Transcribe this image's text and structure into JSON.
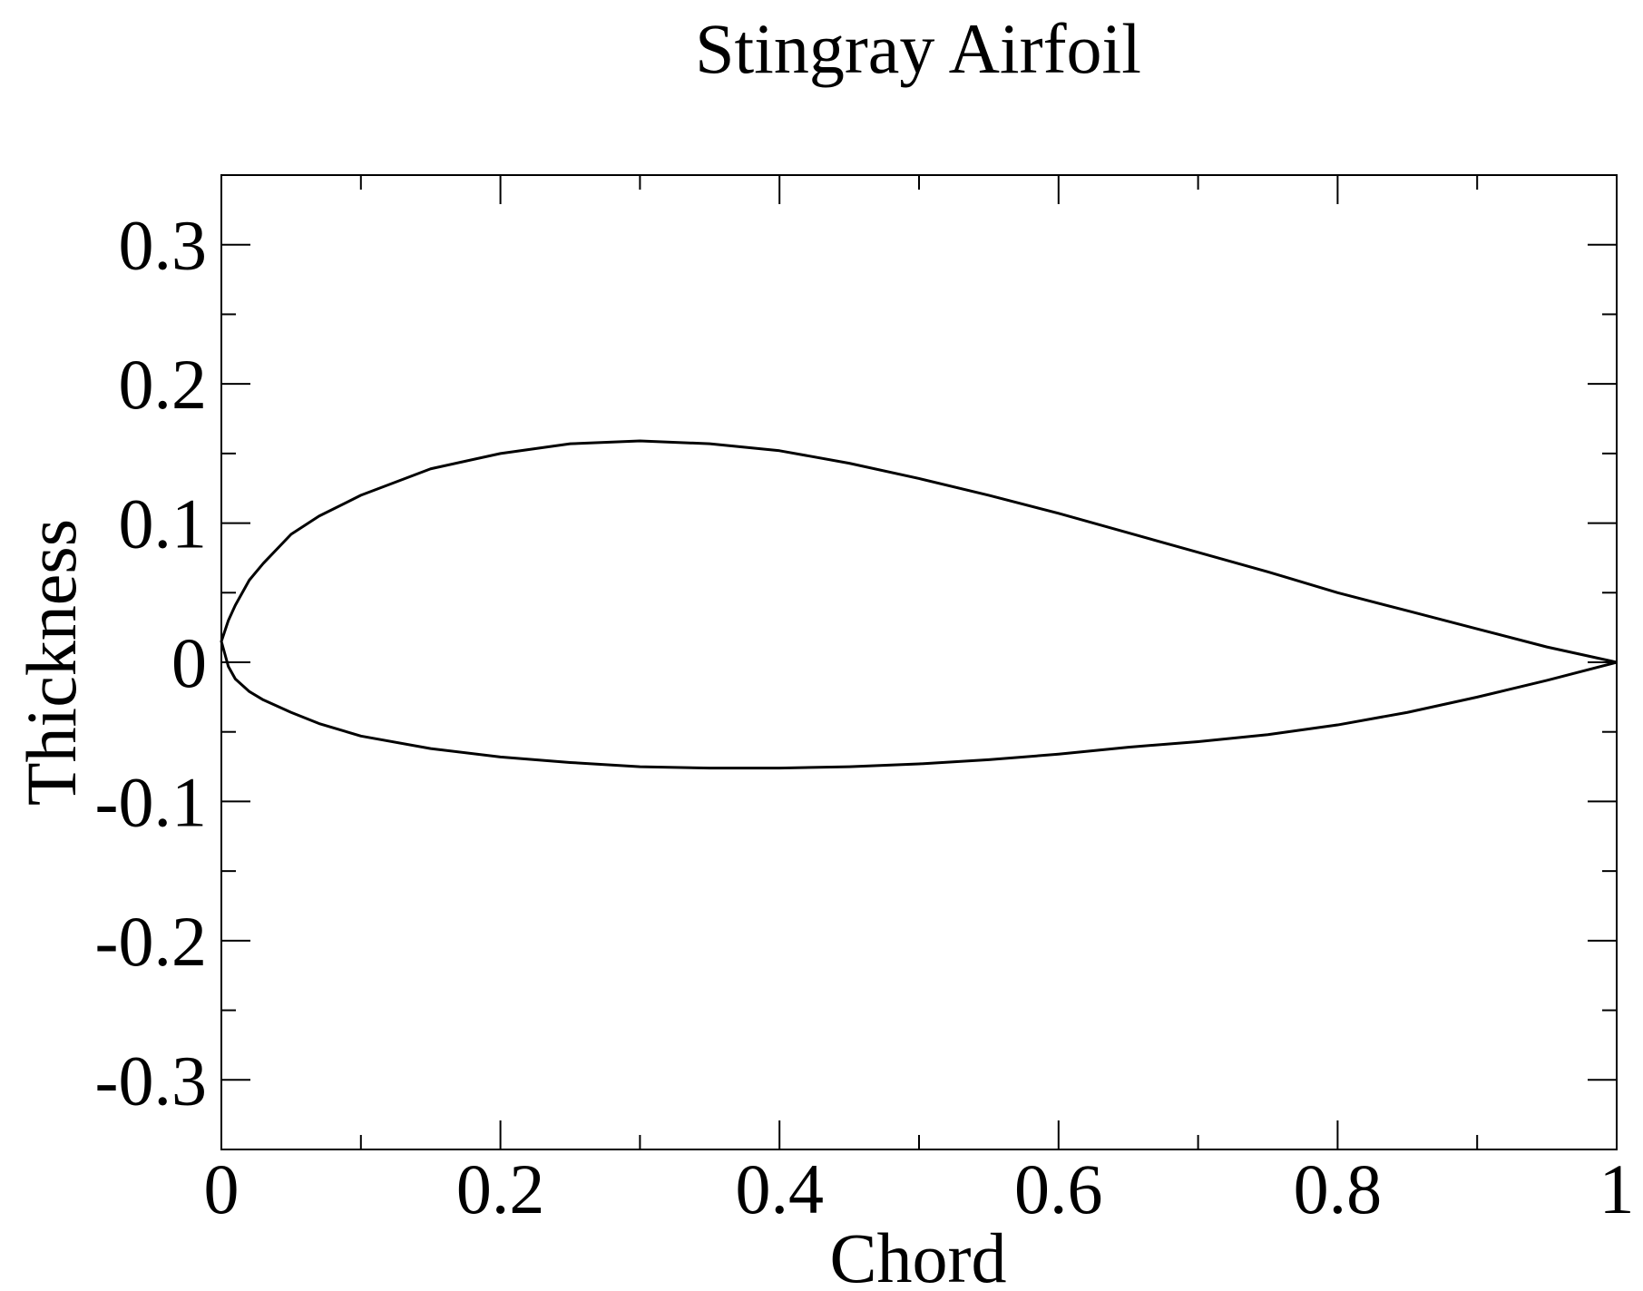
{
  "chart_data": {
    "type": "line",
    "title": "Stingray Airfoil",
    "xlabel": "Chord",
    "ylabel": "Thickness",
    "xlim": [
      0,
      1
    ],
    "ylim": [
      -0.35,
      0.35
    ],
    "x_ticks": [
      {
        "value": 0,
        "label": "0"
      },
      {
        "value": 0.2,
        "label": "0.2"
      },
      {
        "value": 0.4,
        "label": "0.4"
      },
      {
        "value": 0.6,
        "label": "0.6"
      },
      {
        "value": 0.8,
        "label": "0.8"
      },
      {
        "value": 1,
        "label": "1"
      }
    ],
    "x_minor_ticks": [
      0.1,
      0.3,
      0.5,
      0.7,
      0.9
    ],
    "y_ticks": [
      {
        "value": 0.3,
        "label": "0.3"
      },
      {
        "value": 0.2,
        "label": "0.2"
      },
      {
        "value": 0.1,
        "label": "0.1"
      },
      {
        "value": 0,
        "label": "0"
      },
      {
        "value": -0.1,
        "label": "-0.1"
      },
      {
        "value": -0.2,
        "label": "-0.2"
      },
      {
        "value": -0.3,
        "label": "-0.3"
      }
    ],
    "y_minor_ticks": [
      0.25,
      0.15,
      0.05,
      -0.05,
      -0.15,
      -0.25
    ],
    "grid": false,
    "legend": "none",
    "line_color": "#000000",
    "series": [
      {
        "x": [
          1.0,
          0.95,
          0.9,
          0.85,
          0.8,
          0.75,
          0.7,
          0.65,
          0.6,
          0.55,
          0.5,
          0.45,
          0.4,
          0.35,
          0.3,
          0.25,
          0.2,
          0.15,
          0.1,
          0.07,
          0.05,
          0.03,
          0.02,
          0.01,
          0.005,
          0.0,
          0.0,
          0.005,
          0.01,
          0.02,
          0.03,
          0.05,
          0.07,
          0.1,
          0.15,
          0.2,
          0.25,
          0.3,
          0.35,
          0.4,
          0.45,
          0.5,
          0.55,
          0.6,
          0.65,
          0.7,
          0.75,
          0.8,
          0.85,
          0.9,
          0.95,
          1.0
        ],
        "y": [
          0.0,
          0.011,
          0.024,
          0.037,
          0.05,
          0.065,
          0.079,
          0.093,
          0.107,
          0.12,
          0.132,
          0.143,
          0.152,
          0.157,
          0.159,
          0.157,
          0.15,
          0.139,
          0.12,
          0.105,
          0.092,
          0.071,
          0.059,
          0.041,
          0.03,
          0.015,
          0.015,
          -0.003,
          -0.012,
          -0.021,
          -0.027,
          -0.036,
          -0.044,
          -0.053,
          -0.062,
          -0.068,
          -0.072,
          -0.075,
          -0.076,
          -0.076,
          -0.075,
          -0.073,
          -0.07,
          -0.066,
          -0.061,
          -0.057,
          -0.052,
          -0.045,
          -0.036,
          -0.025,
          -0.013,
          0.0
        ]
      }
    ]
  }
}
